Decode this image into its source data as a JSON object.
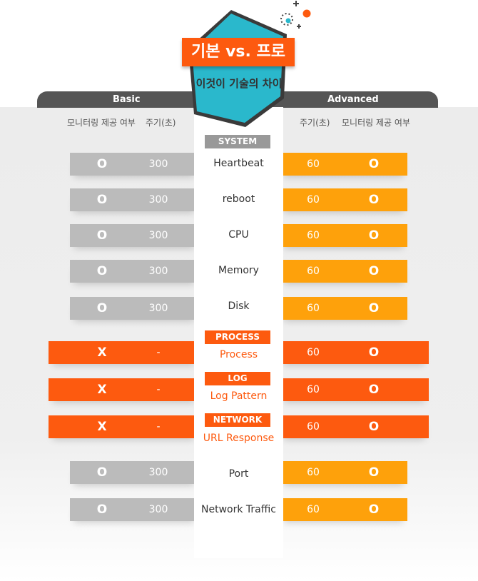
{
  "badge": {
    "title": "기본 vs. 프로",
    "subtitle": "이것이 기술의 차이"
  },
  "tabs": {
    "basic": "Basic",
    "advanced": "Advanced"
  },
  "columns": {
    "basic_provided": "모니터링 제공 여부",
    "basic_period": "주기(초)",
    "adv_period": "주기(초)",
    "adv_provided": "모니터링 제공 여부"
  },
  "categories": {
    "system": "SYSTEM",
    "process": "PROCESS",
    "log": "LOG",
    "network": "NETWORK"
  },
  "rows": [
    {
      "feature": "Heartbeat",
      "basic_provided": "O",
      "basic_period": "300",
      "adv_period": "60",
      "adv_provided": "O"
    },
    {
      "feature": "reboot",
      "basic_provided": "O",
      "basic_period": "300",
      "adv_period": "60",
      "adv_provided": "O"
    },
    {
      "feature": "CPU",
      "basic_provided": "O",
      "basic_period": "300",
      "adv_period": "60",
      "adv_provided": "O"
    },
    {
      "feature": "Memory",
      "basic_provided": "O",
      "basic_period": "300",
      "adv_period": "60",
      "adv_provided": "O"
    },
    {
      "feature": "Disk",
      "basic_provided": "O",
      "basic_period": "300",
      "adv_period": "60",
      "adv_provided": "O"
    },
    {
      "feature": "Process",
      "basic_provided": "X",
      "basic_period": "-",
      "adv_period": "60",
      "adv_provided": "O"
    },
    {
      "feature": "Log Pattern",
      "basic_provided": "X",
      "basic_period": "-",
      "adv_period": "60",
      "adv_provided": "O"
    },
    {
      "feature": "URL Response",
      "basic_provided": "X",
      "basic_period": "-",
      "adv_period": "60",
      "adv_provided": "O"
    },
    {
      "feature": "Port",
      "basic_provided": "O",
      "basic_period": "300",
      "adv_period": "60",
      "adv_provided": "O"
    },
    {
      "feature": "Network Traffic",
      "basic_provided": "O",
      "basic_period": "300",
      "adv_period": "60",
      "adv_provided": "O"
    }
  ],
  "colors": {
    "gray": "#bbbbbb",
    "orange": "#fea10b",
    "red": "#fd5a0f",
    "teal": "#2ab8cc",
    "dark": "#555555"
  }
}
